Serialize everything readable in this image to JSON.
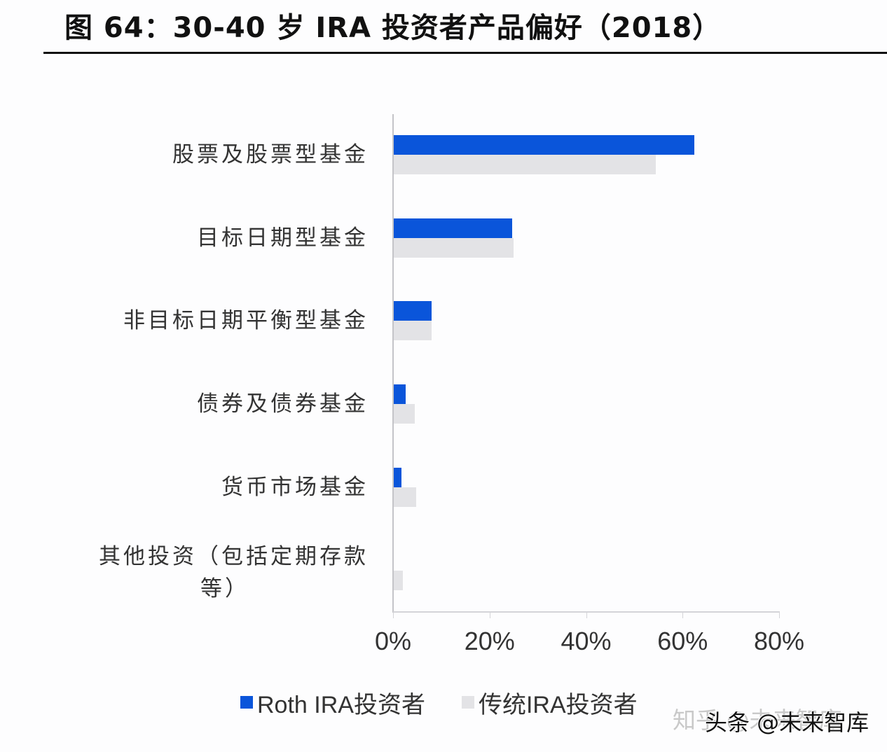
{
  "header": {
    "title": "图 64：30-40 岁 IRA 投资者产品偏好（2018）"
  },
  "chart_data": {
    "type": "bar",
    "orientation": "horizontal",
    "title": "图 64：30-40 岁 IRA 投资者产品偏好（2018）",
    "xlabel": "",
    "ylabel": "",
    "xlim": [
      0,
      80
    ],
    "x_ticks": [
      "0%",
      "20%",
      "40%",
      "60%",
      "80%"
    ],
    "grid": false,
    "legend_position": "bottom",
    "categories": [
      "股票及股票型基金",
      "目标日期型基金",
      "非目标日期平衡型基金",
      "债券及债券基金",
      "货币市场基金",
      "其他投资（包括定期存款等）"
    ],
    "series": [
      {
        "name": "Roth IRA投资者",
        "color": "#0a55da",
        "values": [
          62.4,
          24.7,
          8.0,
          2.6,
          1.7,
          0.0
        ]
      },
      {
        "name": "传统IRA投资者",
        "color": "#e3e3e6",
        "values": [
          54.4,
          25.0,
          8.0,
          4.5,
          4.8,
          2.1
        ]
      }
    ]
  },
  "axis": {
    "x_ticks": [
      {
        "label": "0%",
        "value": 0
      },
      {
        "label": "20%",
        "value": 20
      },
      {
        "label": "40%",
        "value": 40
      },
      {
        "label": "60%",
        "value": 60
      },
      {
        "label": "80%",
        "value": 80
      }
    ]
  },
  "category_labels": [
    {
      "lines": [
        "股票及股票型基金"
      ]
    },
    {
      "lines": [
        "目标日期型基金"
      ]
    },
    {
      "lines": [
        "非目标日期平衡型基金"
      ]
    },
    {
      "lines": [
        "债券及债券基金"
      ]
    },
    {
      "lines": [
        "货币市场基金"
      ]
    },
    {
      "lines": [
        "其他投资（包括定期存款",
        "等）"
      ]
    }
  ],
  "legend": {
    "items": [
      {
        "label": "Roth IRA投资者",
        "color": "#0a55da"
      },
      {
        "label": "传统IRA投资者",
        "color": "#e3e3e6"
      }
    ]
  },
  "watermark": {
    "zhihu": "知乎 @未来智库",
    "toutiao": "头条 @未来智库"
  }
}
